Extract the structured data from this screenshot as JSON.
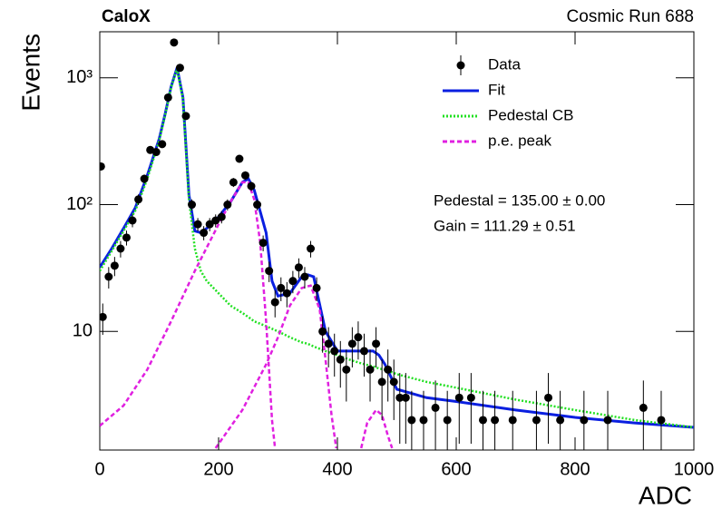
{
  "chart_data": {
    "type": "line",
    "title": "CaloX",
    "subtitle": "Cosmic Run 688",
    "x_label": "ADC",
    "y_label": "Events",
    "log_y": true,
    "legend": "upper-right",
    "xlim": [
      0,
      1000
    ],
    "xticks": [
      0,
      200,
      400,
      600,
      800,
      1000
    ],
    "ylim": [
      1.16,
      2310
    ],
    "yticks": [
      {
        "value": 10,
        "label": "10"
      },
      {
        "value": 100,
        "label": "10²"
      },
      {
        "value": 1000,
        "label": "10³"
      }
    ],
    "annotations": [
      "Pedestal = 135.00 ± 0.00",
      "Gain = 111.29 ± 0.51"
    ],
    "x": [
      0,
      20,
      40,
      60,
      80,
      100,
      110,
      120,
      130,
      140,
      150,
      160,
      170,
      180,
      200,
      220,
      240,
      250,
      260,
      280,
      290,
      300,
      320,
      340,
      350,
      360,
      380,
      400,
      420,
      440,
      460,
      470,
      480,
      500,
      550,
      600,
      700,
      800,
      900,
      1000
    ],
    "series": [
      {
        "name": "Data",
        "style": "points",
        "color": "#000000",
        "x": [
          2,
          5,
          15,
          25,
          35,
          45,
          55,
          65,
          75,
          85,
          95,
          105,
          115,
          125,
          135,
          145,
          155,
          165,
          175,
          185,
          195,
          205,
          215,
          225,
          235,
          245,
          255,
          265,
          275,
          285,
          295,
          305,
          315,
          325,
          335,
          345,
          355,
          365,
          375,
          385,
          395,
          405,
          415,
          425,
          435,
          445,
          455,
          465,
          475,
          485,
          495,
          505,
          515,
          525,
          545,
          565,
          585,
          605,
          625,
          645,
          665,
          695,
          735,
          755,
          775,
          815,
          855,
          915,
          945
        ],
        "values": [
          200,
          13,
          27,
          33,
          45,
          55,
          75,
          110,
          160,
          270,
          260,
          300,
          700,
          1900,
          1200,
          500,
          100,
          70,
          60,
          70,
          75,
          80,
          100,
          150,
          230,
          170,
          140,
          100,
          50,
          30,
          17,
          22,
          20,
          25,
          32,
          27,
          45,
          22,
          10,
          8,
          7,
          6,
          5,
          8,
          9,
          7,
          5,
          8,
          4,
          5,
          4,
          3,
          3,
          2,
          2,
          2.5,
          2,
          3,
          3,
          2,
          2,
          2,
          2,
          3,
          2,
          2,
          2,
          2.5,
          2
        ],
        "errors": [
          14,
          3.6,
          5.2,
          5.7,
          6.7,
          7.4,
          8.7,
          10.5,
          12.6,
          16.4,
          16.1,
          17.3,
          26.5,
          43.6,
          34.6,
          22.4,
          10,
          8.4,
          7.7,
          8.4,
          8.7,
          8.9,
          10,
          12.2,
          15.2,
          13,
          11.8,
          10,
          7.1,
          5.5,
          4.1,
          4.7,
          4.5,
          5,
          5.7,
          5.2,
          6.7,
          4.7,
          3.2,
          2.8,
          2.6,
          2.4,
          2.2,
          2.8,
          3,
          2.6,
          2.2,
          2.8,
          2,
          2.2,
          2,
          1.7,
          1.7,
          1.4,
          1.4,
          1.6,
          1.4,
          1.7,
          1.7,
          1.4,
          1.4,
          1.4,
          1.4,
          1.7,
          1.4,
          1.4,
          1.4,
          1.6,
          1.4
        ]
      },
      {
        "name": "Fit",
        "style": "solid",
        "color": "#0a1fe0",
        "values": [
          32,
          45,
          65,
          95,
          170,
          330,
          520,
          850,
          1200,
          700,
          120,
          62,
          60,
          65,
          80,
          105,
          150,
          160,
          130,
          60,
          25,
          19,
          20,
          27,
          28,
          27,
          10,
          7,
          7,
          7,
          7,
          6.5,
          5.5,
          3.5,
          3,
          2.8,
          2.4,
          2.1,
          1.9,
          1.75
        ]
      },
      {
        "name": "Pedestal CB",
        "style": "dotted",
        "color": "#22e022",
        "values": [
          30,
          43,
          62,
          90,
          160,
          320,
          510,
          840,
          1180,
          680,
          110,
          45,
          30,
          25,
          20,
          16,
          14,
          13,
          12,
          11,
          10.5,
          10,
          9,
          8.2,
          8,
          7.6,
          7,
          6.5,
          6,
          5.6,
          5.3,
          5.1,
          5,
          4.6,
          4,
          3.6,
          2.9,
          2.4,
          2.0,
          1.75
        ]
      },
      {
        "name": "p.e. peak",
        "style": "dashed",
        "color": "#e020e0",
        "x": [
          0,
          40,
          80,
          120,
          160,
          200,
          220,
          240,
          250,
          260,
          270,
          280,
          290,
          295,
          null,
          195,
          240,
          280,
          300,
          320,
          340,
          355,
          370,
          380,
          390,
          398,
          null,
          440,
          450,
          465,
          475,
          485,
          492
        ],
        "values": [
          1.8,
          2.6,
          5,
          12,
          30,
          70,
          105,
          150,
          150,
          110,
          50,
          12,
          2,
          1.2,
          null,
          1.2,
          2.4,
          5.5,
          9,
          16,
          22,
          23,
          15,
          6,
          2.2,
          1.2,
          null,
          1.2,
          1.9,
          2.4,
          2.2,
          1.5,
          1.2
        ]
      }
    ]
  }
}
